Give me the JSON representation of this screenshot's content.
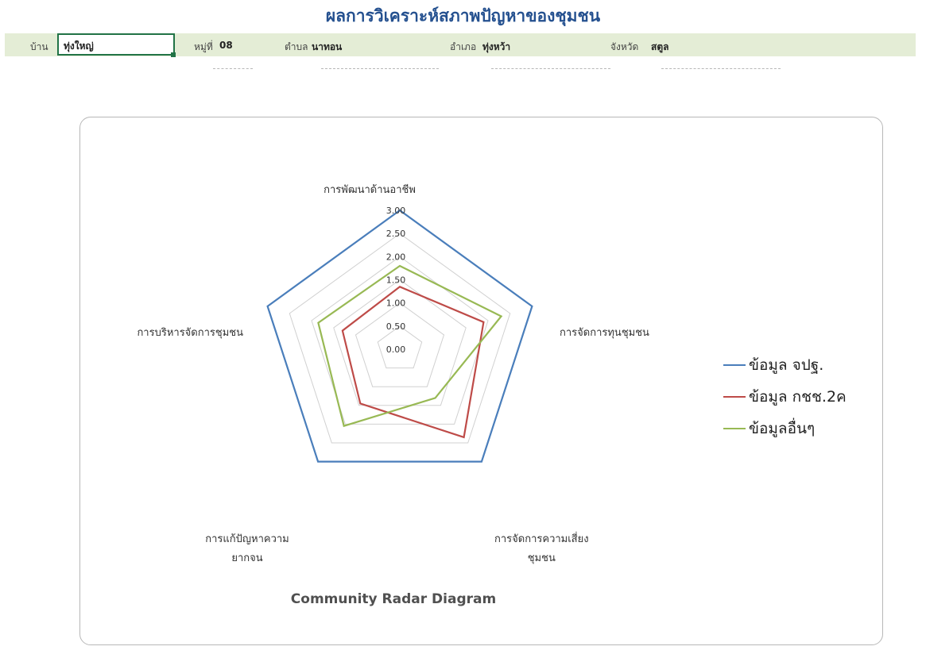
{
  "header": {
    "title": "ผลการวิเคราะห์สภาพปัญหาของชุมชน",
    "village_label": "บ้าน",
    "village_value": "ทุ่งใหญ่",
    "moo_label": "หมู่ที่",
    "moo_value": "08",
    "tambon_label": "ตำบล",
    "tambon_value": "นาทอน",
    "amphoe_label": "อำเภอ",
    "amphoe_value": "ทุ่งหว้า",
    "province_label": "จังหวัด",
    "province_value": "สตูล"
  },
  "colors": {
    "header_band": "#e4edd6",
    "title": "#24508f",
    "selection": "#217346"
  },
  "chart_data": {
    "type": "radar",
    "title": "Community Radar Diagram",
    "axes": [
      "การพัฒนาด้านอาชีพ",
      "การจัดการทุนชุมชน",
      "การจัดการความเสี่ยงชุมชน",
      "การแก้ปัญหาความยากจน",
      "การบริหารจัดการชุมชน"
    ],
    "axis_label_lines": [
      [
        "การพัฒนาด้านอาชีพ"
      ],
      [
        "การจัดการทุนชุมชน"
      ],
      [
        "การจัดการความเสี่ยง",
        "ชุมชน"
      ],
      [
        "การแก้ปัญหาความ",
        "ยากจน"
      ],
      [
        "การบริหารจัดการชุมชน"
      ]
    ],
    "ticks": [
      "0.00",
      "0.50",
      "1.00",
      "1.50",
      "2.00",
      "2.50",
      "3.00"
    ],
    "range": [
      0,
      3
    ],
    "grid": true,
    "legend_position": "right",
    "series": [
      {
        "name": "ข้อมูล จปฐ.",
        "color": "#4a7ebb",
        "values": [
          3.0,
          3.0,
          3.0,
          3.0,
          3.0
        ]
      },
      {
        "name": "ข้อมูล กชช.2ค",
        "color": "#be4b48",
        "values": [
          1.35,
          1.9,
          2.35,
          1.45,
          1.3
        ]
      },
      {
        "name": "ข้อมูลอื่นๆ",
        "color": "#98b954",
        "values": [
          1.8,
          2.3,
          1.3,
          2.05,
          1.85
        ]
      }
    ]
  }
}
